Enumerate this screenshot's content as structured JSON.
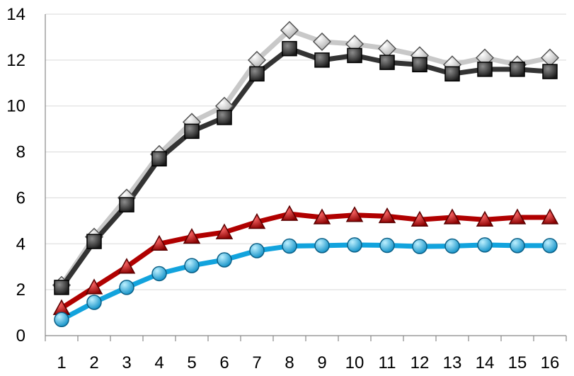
{
  "chart_data": {
    "type": "line",
    "title": "",
    "xlabel": "",
    "ylabel": "",
    "categories": [
      "1",
      "2",
      "3",
      "4",
      "5",
      "6",
      "7",
      "8",
      "9",
      "10",
      "11",
      "12",
      "13",
      "14",
      "15",
      "16"
    ],
    "ylim": [
      0,
      14
    ],
    "yticks": [
      "0",
      "2",
      "4",
      "6",
      "8",
      "10",
      "12",
      "14"
    ],
    "grid": true,
    "legend": "none",
    "series": [
      {
        "marker": "diamond",
        "color": "#c8c8c8",
        "values": [
          2.2,
          4.3,
          6.0,
          7.9,
          9.3,
          10.0,
          12.0,
          13.3,
          12.8,
          12.7,
          12.5,
          12.2,
          11.8,
          12.1,
          11.8,
          12.1
        ]
      },
      {
        "marker": "square",
        "color": "#333333",
        "values": [
          2.1,
          4.1,
          5.7,
          7.7,
          8.9,
          9.5,
          11.4,
          12.5,
          12.0,
          12.2,
          11.9,
          11.8,
          11.4,
          11.6,
          11.6,
          11.5
        ]
      },
      {
        "marker": "triangle",
        "color": "#b00000",
        "values": [
          1.2,
          2.1,
          3.0,
          4.0,
          4.3,
          4.5,
          4.95,
          5.3,
          5.15,
          5.25,
          5.2,
          5.05,
          5.15,
          5.05,
          5.15,
          5.15
        ]
      },
      {
        "marker": "circle",
        "color": "#12a3dd",
        "values": [
          0.7,
          1.45,
          2.1,
          2.7,
          3.05,
          3.3,
          3.7,
          3.9,
          3.92,
          3.95,
          3.93,
          3.88,
          3.9,
          3.95,
          3.92,
          3.92
        ]
      }
    ]
  }
}
